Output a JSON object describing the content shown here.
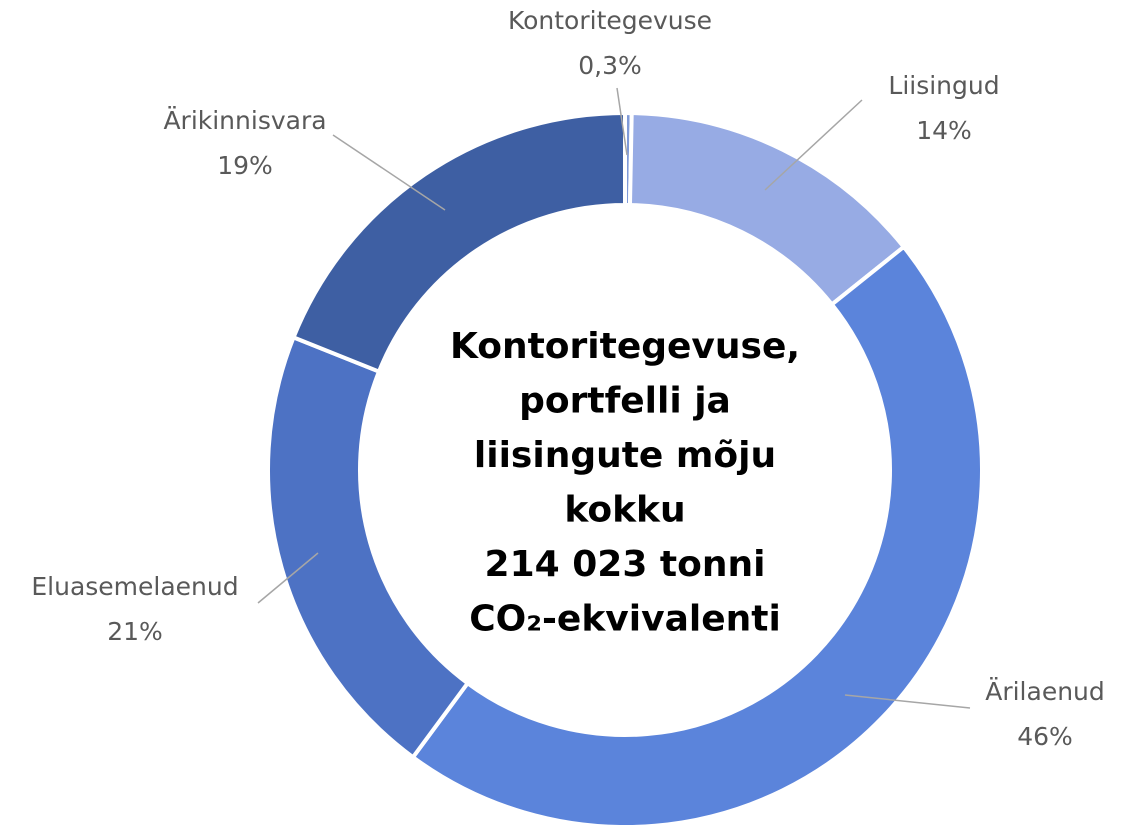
{
  "chart_data": {
    "type": "donut",
    "categories": [
      "Kontoritegevuse",
      "Liisingud",
      "Ärilaenud",
      "Eluasemelaenud",
      "Ärikinnisvara"
    ],
    "values": [
      0.3,
      14,
      46,
      21,
      19
    ],
    "value_labels": [
      "0,3%",
      "14%",
      "46%",
      "21%",
      "19%"
    ],
    "colors": [
      "#7f9ad8",
      "#97abe4",
      "#5b84db",
      "#4d72c4",
      "#3e5fa3"
    ],
    "center_text": [
      "Kontoritegevuse,",
      "portfelli ja",
      "liisingute mõju",
      "kokku",
      "214 023 tonni",
      "CO₂-ekvivalenti"
    ]
  }
}
